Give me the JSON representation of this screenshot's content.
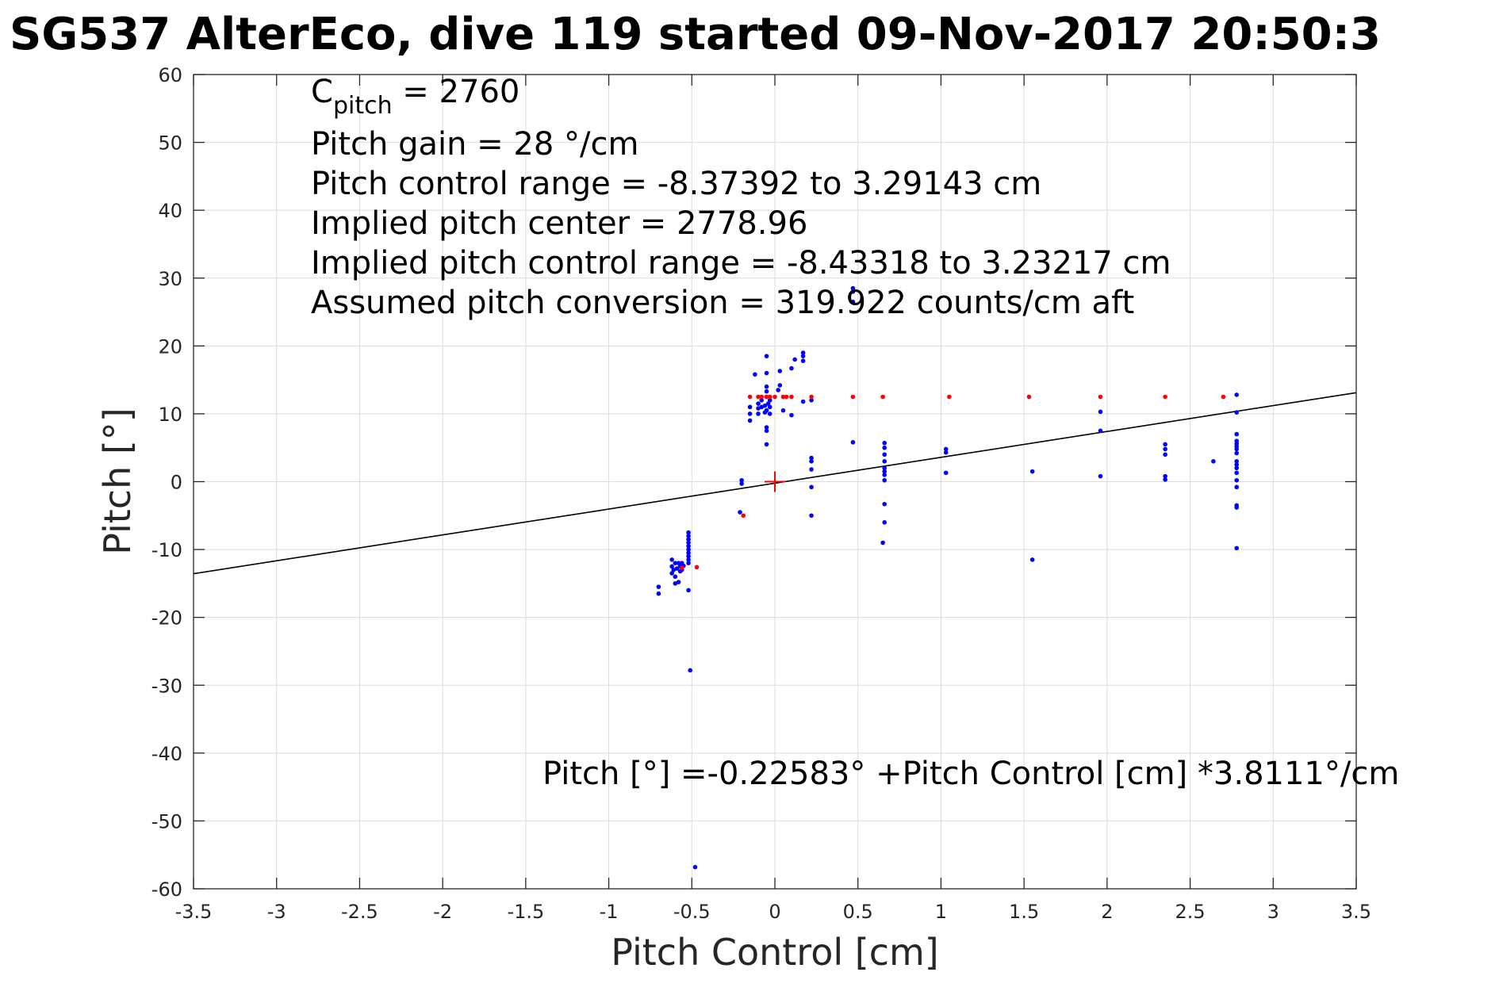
{
  "title": "SG537 AlterEco, dive 119 started 09-Nov-2017 20:50:3",
  "annotations": {
    "c_pitch_prefix": "C",
    "c_pitch_sub": "pitch",
    "c_pitch_value": " = 2760",
    "pitch_gain": "Pitch gain = 28 °/cm",
    "pitch_control_range": "Pitch control range = -8.37392 to 3.29143 cm",
    "implied_pitch_center": "Implied pitch center = 2778.96",
    "implied_pitch_control_range": "Implied pitch control range = -8.43318 to 3.23217 cm",
    "assumed_pitch_conversion": "Assumed pitch conversion = 319.922 counts/cm aft",
    "fit_equation": "Pitch [°] =-0.22583° +Pitch Control [cm] *3.8111°/cm"
  },
  "chart_data": {
    "type": "scatter",
    "xlabel": "Pitch Control [cm]",
    "ylabel": "Pitch [°]",
    "xlim": [
      -3.5,
      3.5
    ],
    "ylim": [
      -60,
      60
    ],
    "xticks": [
      -3.5,
      -3,
      -2.5,
      -2,
      -1.5,
      -1,
      -0.5,
      0,
      0.5,
      1,
      1.5,
      2,
      2.5,
      3,
      3.5
    ],
    "yticks": [
      -60,
      -50,
      -40,
      -30,
      -20,
      -10,
      0,
      10,
      20,
      30,
      40,
      50,
      60
    ],
    "xtick_labels": [
      "-3.5",
      "-3",
      "-2.5",
      "-2",
      "-1.5",
      "-1",
      "-0.5",
      "0",
      "0.5",
      "1",
      "1.5",
      "2",
      "2.5",
      "3",
      "3.5"
    ],
    "ytick_labels": [
      "-60",
      "-50",
      "-40",
      "-30",
      "-20",
      "-10",
      "0",
      "10",
      "20",
      "30",
      "40",
      "50",
      "60"
    ],
    "grid": true,
    "colors": {
      "blue_points": "#0000ff",
      "red_points": "#ff0000",
      "fit_line": "#000000",
      "center_marker": "#ff0000"
    },
    "fit_line": {
      "intercept": -0.22583,
      "slope": 3.8111,
      "x_range": [
        -3.5,
        3.5
      ]
    },
    "center_marker": {
      "x": 0,
      "y": 0
    },
    "blue_points": [
      [
        -0.7,
        -15.5
      ],
      [
        -0.7,
        -16.5
      ],
      [
        -0.62,
        -11.5
      ],
      [
        -0.62,
        -12.5
      ],
      [
        -0.62,
        -13.5
      ],
      [
        -0.61,
        -13.0
      ],
      [
        -0.6,
        -12.0
      ],
      [
        -0.6,
        -14.0
      ],
      [
        -0.6,
        -15.0
      ],
      [
        -0.59,
        -12.8
      ],
      [
        -0.58,
        -12.0
      ],
      [
        -0.58,
        -14.8
      ],
      [
        -0.57,
        -12.5
      ],
      [
        -0.57,
        -13.2
      ],
      [
        -0.56,
        -12.0
      ],
      [
        -0.56,
        -13.0
      ],
      [
        -0.55,
        -12.4
      ],
      [
        -0.52,
        -7.5
      ],
      [
        -0.52,
        -8.0
      ],
      [
        -0.52,
        -8.5
      ],
      [
        -0.52,
        -9.0
      ],
      [
        -0.52,
        -9.5
      ],
      [
        -0.52,
        -10.0
      ],
      [
        -0.52,
        -10.5
      ],
      [
        -0.52,
        -11.0
      ],
      [
        -0.52,
        -11.5
      ],
      [
        -0.52,
        -12.0
      ],
      [
        -0.52,
        -16.0
      ],
      [
        -0.51,
        -27.8
      ],
      [
        -0.48,
        -56.8
      ],
      [
        -0.21,
        -4.5
      ],
      [
        -0.2,
        -0.3
      ],
      [
        -0.2,
        0.2
      ],
      [
        -0.15,
        9.0
      ],
      [
        -0.15,
        10.0
      ],
      [
        -0.15,
        11.0
      ],
      [
        -0.12,
        15.8
      ],
      [
        -0.1,
        10.0
      ],
      [
        -0.1,
        10.8
      ],
      [
        -0.1,
        11.5
      ],
      [
        -0.08,
        11.0
      ],
      [
        -0.08,
        12.0
      ],
      [
        -0.06,
        10.2
      ],
      [
        -0.06,
        11.2
      ],
      [
        -0.05,
        5.5
      ],
      [
        -0.05,
        7.5
      ],
      [
        -0.05,
        8.0
      ],
      [
        -0.05,
        10.5
      ],
      [
        -0.05,
        12.5
      ],
      [
        -0.05,
        13.3
      ],
      [
        -0.05,
        14.0
      ],
      [
        -0.05,
        16.0
      ],
      [
        -0.05,
        18.5
      ],
      [
        -0.04,
        11.5
      ],
      [
        -0.03,
        10.0
      ],
      [
        -0.03,
        11.0
      ],
      [
        -0.03,
        12.0
      ],
      [
        0.02,
        13.5
      ],
      [
        0.03,
        14.2
      ],
      [
        0.03,
        16.3
      ],
      [
        0.05,
        10.5
      ],
      [
        0.1,
        9.8
      ],
      [
        0.1,
        16.7
      ],
      [
        0.12,
        18.0
      ],
      [
        0.17,
        11.8
      ],
      [
        0.17,
        17.8
      ],
      [
        0.17,
        18.5
      ],
      [
        0.17,
        19.0
      ],
      [
        0.22,
        12.0
      ],
      [
        0.22,
        1.8
      ],
      [
        0.22,
        3.0
      ],
      [
        0.22,
        3.5
      ],
      [
        0.22,
        -0.8
      ],
      [
        0.22,
        -5.0
      ],
      [
        0.47,
        5.8
      ],
      [
        0.47,
        26.5
      ],
      [
        0.47,
        28.0
      ],
      [
        0.47,
        28.5
      ],
      [
        0.66,
        1.0
      ],
      [
        0.66,
        1.5
      ],
      [
        0.66,
        2.0
      ],
      [
        0.66,
        3.0
      ],
      [
        0.66,
        4.0
      ],
      [
        0.66,
        5.0
      ],
      [
        0.66,
        5.7
      ],
      [
        0.66,
        0.2
      ],
      [
        0.66,
        -3.3
      ],
      [
        0.66,
        -6.0
      ],
      [
        0.65,
        -9.0
      ],
      [
        1.03,
        1.3
      ],
      [
        1.03,
        4.3
      ],
      [
        1.03,
        4.8
      ],
      [
        1.55,
        1.5
      ],
      [
        1.55,
        -11.5
      ],
      [
        1.96,
        0.8
      ],
      [
        1.96,
        7.5
      ],
      [
        1.96,
        10.3
      ],
      [
        2.35,
        0.3
      ],
      [
        2.35,
        0.8
      ],
      [
        2.35,
        4.0
      ],
      [
        2.35,
        4.8
      ],
      [
        2.35,
        5.5
      ],
      [
        2.64,
        3.0
      ],
      [
        2.78,
        -9.8
      ],
      [
        2.78,
        -3.5
      ],
      [
        2.78,
        -3.8
      ],
      [
        2.78,
        -0.8
      ],
      [
        2.78,
        0.2
      ],
      [
        2.78,
        1.3
      ],
      [
        2.78,
        2.0
      ],
      [
        2.78,
        2.5
      ],
      [
        2.78,
        3.0
      ],
      [
        2.78,
        4.2
      ],
      [
        2.78,
        4.8
      ],
      [
        2.78,
        5.2
      ],
      [
        2.78,
        5.6
      ],
      [
        2.78,
        6.0
      ],
      [
        2.78,
        7.0
      ],
      [
        2.78,
        10.2
      ],
      [
        2.78,
        12.8
      ]
    ],
    "red_points": [
      [
        -0.56,
        -12.7
      ],
      [
        -0.47,
        -12.6
      ],
      [
        -0.19,
        -5.0
      ],
      [
        -0.15,
        12.5
      ],
      [
        -0.1,
        12.5
      ],
      [
        -0.08,
        12.5
      ],
      [
        -0.05,
        12.5
      ],
      [
        -0.03,
        12.5
      ],
      [
        0.0,
        12.5
      ],
      [
        0.05,
        12.5
      ],
      [
        0.07,
        12.5
      ],
      [
        0.1,
        12.5
      ],
      [
        0.22,
        12.5
      ],
      [
        0.47,
        12.5
      ],
      [
        0.65,
        12.5
      ],
      [
        1.05,
        12.5
      ],
      [
        1.53,
        12.5
      ],
      [
        1.96,
        12.5
      ],
      [
        2.35,
        12.5
      ],
      [
        2.7,
        12.5
      ]
    ]
  }
}
